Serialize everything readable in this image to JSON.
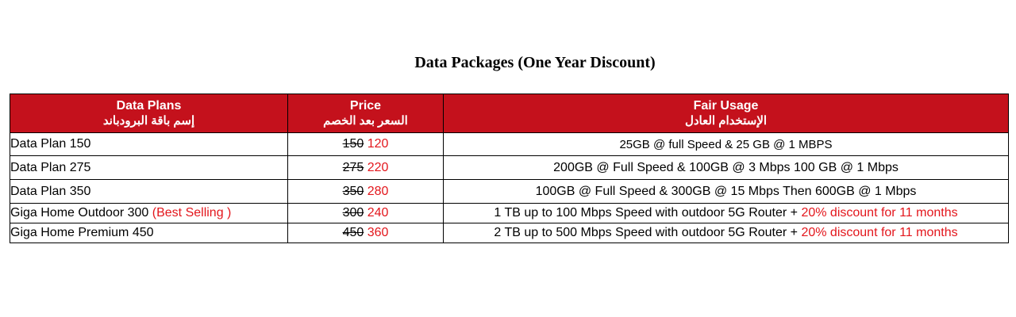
{
  "title": "Data Packages (One Year Discount)",
  "headers": {
    "plans": {
      "en": "Data Plans",
      "ar": "إسم باقة البرودباند"
    },
    "price": {
      "en": "Price",
      "ar": "السعر بعد الخصم"
    },
    "usage": {
      "en": "Fair Usage",
      "ar": "الإستخدام العادل"
    }
  },
  "rows": [
    {
      "plan": "Data Plan 150",
      "plan_tag": "",
      "old_price": "150",
      "new_price": "120",
      "usage": "25GB @ full Speed & 25 GB @ 1 MBPS",
      "usage_extra": ""
    },
    {
      "plan": "Data Plan 275",
      "plan_tag": "",
      "old_price": "275",
      "new_price": "220",
      "usage": "200GB @ Full Speed & 100GB @ 3 Mbps 100 GB @ 1 Mbps",
      "usage_extra": ""
    },
    {
      "plan": "Data Plan 350",
      "plan_tag": "",
      "old_price": "350",
      "new_price": "280",
      "usage": "100GB @ Full Speed & 300GB @ 15 Mbps Then 600GB @ 1 Mbps",
      "usage_extra": ""
    },
    {
      "plan": "Giga Home Outdoor 300",
      "plan_tag": "(Best Selling )",
      "old_price": "300",
      "new_price": "240",
      "usage": "1 TB up to 100 Mbps Speed with outdoor 5G Router +",
      "usage_extra": "20% discount for 11 months"
    },
    {
      "plan": "Giga Home Premium 450",
      "plan_tag": "",
      "old_price": "450",
      "new_price": "360",
      "usage": "2 TB up to 500 Mbps Speed with outdoor 5G Router +",
      "usage_extra": "20% discount for 11 months"
    }
  ],
  "colors": {
    "header_bg": "#c4111c",
    "accent_red": "#e3161c"
  }
}
